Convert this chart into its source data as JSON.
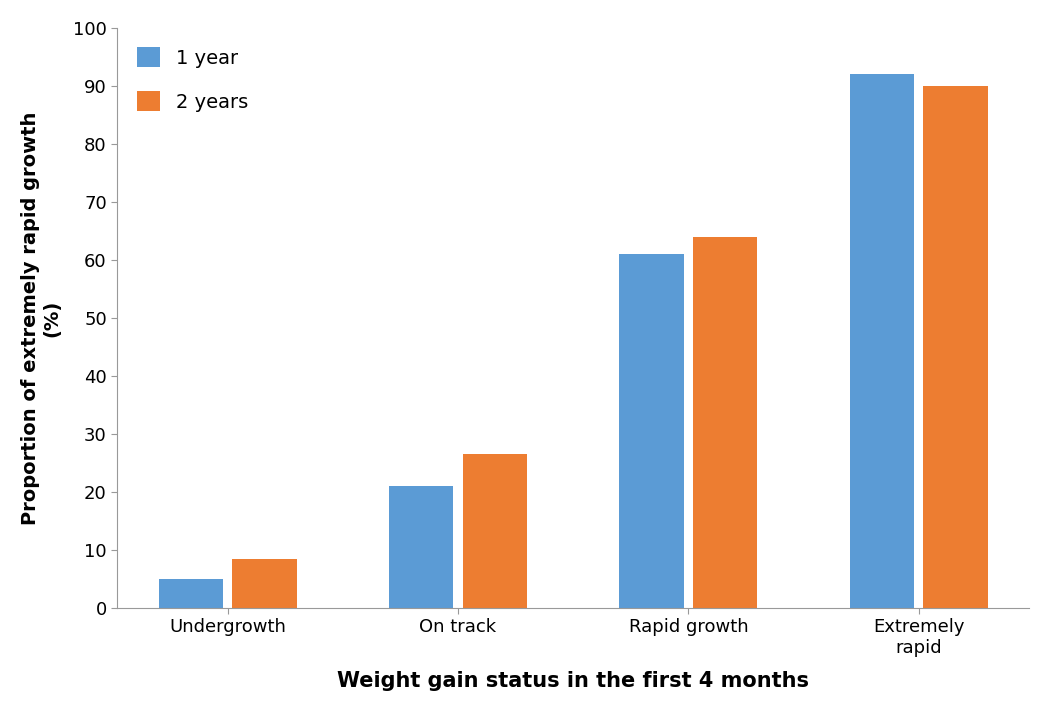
{
  "categories": [
    "Undergrowth",
    "On track",
    "Rapid growth",
    "Extremely\nrapid"
  ],
  "series": [
    {
      "label": "1 year",
      "values": [
        5,
        21,
        61,
        92
      ],
      "color": "#5B9BD5"
    },
    {
      "label": "2 years",
      "values": [
        8.5,
        26.5,
        64,
        90
      ],
      "color": "#ED7D31"
    }
  ],
  "ylabel_line1": "Proportion of extremely rapid growth",
  "ylabel_line2": "(%)",
  "xlabel": "Weight gain status in the first 4 months",
  "ylim": [
    0,
    100
  ],
  "yticks": [
    0,
    10,
    20,
    30,
    40,
    50,
    60,
    70,
    80,
    90,
    100
  ],
  "bar_width": 0.28,
  "bar_gap": 0.04,
  "legend_loc": "upper left",
  "background_color": "#ffffff",
  "xlabel_fontsize": 15,
  "ylabel_fontsize": 14,
  "tick_fontsize": 13,
  "legend_fontsize": 14
}
